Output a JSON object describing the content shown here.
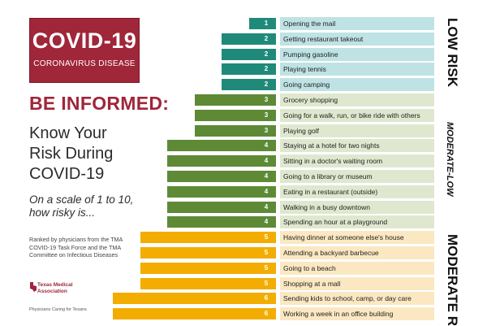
{
  "header": {
    "covid_title": "COVID-19",
    "covid_subtitle": "CORONAVIRUS DISEASE",
    "be_informed": "BE INFORMED:",
    "know_line1": "Know Your",
    "know_line2": "Risk During",
    "know_line3": "COVID-19",
    "scale_line1": "On a scale of 1 to 10,",
    "scale_line2": "how risky is...",
    "ranked_text": "Ranked by physicians from the TMA COVID-19 Task Force and the TMA Committee on Infectious Diseases",
    "tma_name": "Texas Medical Association",
    "tma_tagline": "Physicians Caring for Texans"
  },
  "side_labels": [
    "LOW RISK",
    "MODERATE-LOW",
    "MODERATE R"
  ],
  "colors": {
    "low_bar": "#1f8a7a",
    "low_bg": "#bfe3e4",
    "modlow_bar": "#5e8a36",
    "modlow_bg": "#dfe8cf",
    "mod_bar": "#f2ad00",
    "mod_bg": "#fbe8c2",
    "brand": "#a0263a"
  },
  "chart_data": {
    "type": "bar",
    "orientation": "horizontal",
    "categories": [
      "Opening the mail",
      "Getting restaurant takeout",
      "Pumping gasoline",
      "Playing tennis",
      "Going camping",
      "Grocery shopping",
      "Going for a walk, run, or bike ride with others",
      "Playing golf",
      "Staying at a hotel for two nights",
      "Sitting in a doctor's waiting room",
      "Going to a library or museum",
      "Eating in a restaurant (outside)",
      "Walking in a busy downtown",
      "Spending an hour at a playground",
      "Having dinner at someone else's house",
      "Attending a backyard barbecue",
      "Going to a beach",
      "Shopping at a mall",
      "Sending kids to school, camp, or day care",
      "Working a week in an office building"
    ],
    "values": [
      1,
      2,
      2,
      2,
      2,
      3,
      3,
      3,
      4,
      4,
      4,
      4,
      4,
      4,
      5,
      5,
      5,
      5,
      6,
      6
    ],
    "xlim": [
      0,
      10
    ],
    "title": "",
    "xlabel": "",
    "ylabel": ""
  }
}
